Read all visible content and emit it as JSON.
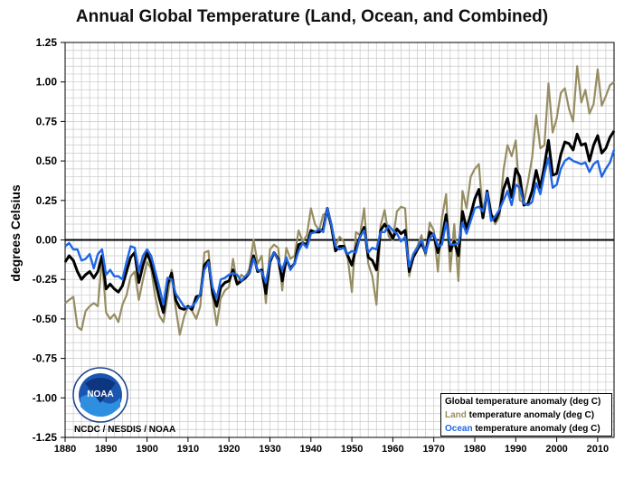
{
  "title": "Annual Global Temperature (Land, Ocean, and Combined)",
  "credit": "NCDC / NESDIS / NOAA",
  "logo_text": "NOAA",
  "colors": {
    "global": "#000000",
    "land": "#978d62",
    "ocean": "#1f66e5",
    "grid": "#c8c8c8"
  },
  "legend": [
    {
      "key": "Global",
      "rest": "temperature anomaly (deg C)",
      "color": "#000000"
    },
    {
      "key": "Land",
      "rest": "temperature anomaly (deg C)",
      "color": "#978d62"
    },
    {
      "key": "Ocean",
      "rest": "temperature anomaly (deg C)",
      "color": "#1f66e5"
    }
  ],
  "chart_data": {
    "type": "line",
    "title": "Annual Global Temperature (Land, Ocean, and Combined)",
    "xlabel": "",
    "ylabel": "degrees Celsius",
    "xlim": [
      1880,
      2014
    ],
    "ylim": [
      -1.25,
      1.25
    ],
    "yticks": [
      "1.25",
      "1.00",
      "0.75",
      "0.50",
      "0.25",
      "0.00",
      "-0.25",
      "-0.50",
      "-0.75",
      "-1.00",
      "-1.25"
    ],
    "xticks": [
      "1880",
      "1890",
      "1900",
      "1910",
      "1920",
      "1930",
      "1940",
      "1950",
      "1960",
      "1970",
      "1980",
      "1990",
      "2000",
      "2010"
    ],
    "x_start": 1880,
    "series": [
      {
        "name": "Global",
        "key": "global",
        "values": [
          -0.14,
          -0.1,
          -0.13,
          -0.2,
          -0.25,
          -0.22,
          -0.2,
          -0.24,
          -0.2,
          -0.1,
          -0.31,
          -0.28,
          -0.31,
          -0.33,
          -0.29,
          -0.2,
          -0.11,
          -0.08,
          -0.27,
          -0.16,
          -0.08,
          -0.15,
          -0.26,
          -0.37,
          -0.46,
          -0.28,
          -0.21,
          -0.38,
          -0.43,
          -0.44,
          -0.42,
          -0.44,
          -0.36,
          -0.35,
          -0.16,
          -0.13,
          -0.34,
          -0.42,
          -0.3,
          -0.27,
          -0.26,
          -0.19,
          -0.28,
          -0.26,
          -0.24,
          -0.21,
          -0.1,
          -0.2,
          -0.19,
          -0.34,
          -0.14,
          -0.08,
          -0.12,
          -0.26,
          -0.12,
          -0.18,
          -0.15,
          -0.03,
          -0.02,
          -0.03,
          0.06,
          0.05,
          0.05,
          0.07,
          0.2,
          0.09,
          -0.07,
          -0.04,
          -0.04,
          -0.1,
          -0.16,
          -0.05,
          0.02,
          0.08,
          -0.11,
          -0.13,
          -0.19,
          0.06,
          0.1,
          0.06,
          0.01,
          0.07,
          0.04,
          0.06,
          -0.2,
          -0.11,
          -0.06,
          -0.02,
          -0.08,
          0.05,
          0.03,
          -0.08,
          0.01,
          0.16,
          -0.07,
          -0.01,
          -0.1,
          0.18,
          0.07,
          0.16,
          0.26,
          0.32,
          0.14,
          0.31,
          0.16,
          0.12,
          0.18,
          0.32,
          0.39,
          0.27,
          0.45,
          0.4,
          0.22,
          0.23,
          0.31,
          0.44,
          0.33,
          0.47,
          0.63,
          0.41,
          0.42,
          0.54,
          0.62,
          0.61,
          0.57,
          0.67,
          0.6,
          0.61,
          0.5,
          0.6,
          0.66,
          0.55,
          0.58,
          0.65,
          0.69
        ]
      },
      {
        "name": "Land",
        "key": "land",
        "values": [
          -0.4,
          -0.38,
          -0.36,
          -0.55,
          -0.57,
          -0.45,
          -0.42,
          -0.4,
          -0.42,
          -0.12,
          -0.46,
          -0.5,
          -0.47,
          -0.52,
          -0.41,
          -0.35,
          -0.23,
          -0.2,
          -0.38,
          -0.25,
          -0.14,
          -0.18,
          -0.36,
          -0.48,
          -0.52,
          -0.36,
          -0.19,
          -0.43,
          -0.6,
          -0.49,
          -0.42,
          -0.45,
          -0.5,
          -0.42,
          -0.08,
          -0.07,
          -0.36,
          -0.54,
          -0.37,
          -0.32,
          -0.3,
          -0.12,
          -0.28,
          -0.22,
          -0.24,
          -0.18,
          0.0,
          -0.15,
          -0.1,
          -0.4,
          -0.06,
          -0.03,
          -0.05,
          -0.32,
          -0.05,
          -0.12,
          -0.1,
          0.06,
          -0.01,
          0.03,
          0.2,
          0.1,
          0.06,
          0.16,
          0.17,
          0.08,
          -0.04,
          0.02,
          -0.01,
          -0.12,
          -0.33,
          0.05,
          0.03,
          0.2,
          -0.15,
          -0.23,
          -0.41,
          0.09,
          0.19,
          0.02,
          0.0,
          0.18,
          0.21,
          0.2,
          -0.23,
          -0.09,
          -0.04,
          0.03,
          -0.1,
          0.11,
          0.06,
          -0.2,
          0.14,
          0.29,
          -0.2,
          0.1,
          -0.26,
          0.31,
          0.2,
          0.4,
          0.45,
          0.48,
          0.16,
          0.3,
          0.17,
          0.1,
          0.15,
          0.44,
          0.6,
          0.53,
          0.63,
          0.25,
          0.24,
          0.37,
          0.52,
          0.79,
          0.58,
          0.6,
          0.99,
          0.68,
          0.77,
          0.93,
          0.96,
          0.83,
          0.75,
          1.1,
          0.87,
          0.95,
          0.8,
          0.86,
          1.08,
          0.85,
          0.91,
          0.98,
          1.0
        ]
      },
      {
        "name": "Ocean",
        "key": "ocean",
        "values": [
          -0.04,
          -0.02,
          -0.06,
          -0.06,
          -0.13,
          -0.12,
          -0.09,
          -0.18,
          -0.09,
          -0.06,
          -0.22,
          -0.19,
          -0.23,
          -0.23,
          -0.25,
          -0.14,
          -0.04,
          -0.05,
          -0.2,
          -0.1,
          -0.06,
          -0.1,
          -0.2,
          -0.3,
          -0.41,
          -0.24,
          -0.25,
          -0.34,
          -0.38,
          -0.42,
          -0.43,
          -0.42,
          -0.39,
          -0.34,
          -0.19,
          -0.14,
          -0.3,
          -0.37,
          -0.25,
          -0.24,
          -0.22,
          -0.21,
          -0.22,
          -0.26,
          -0.23,
          -0.21,
          -0.12,
          -0.19,
          -0.2,
          -0.27,
          -0.13,
          -0.08,
          -0.13,
          -0.19,
          -0.11,
          -0.19,
          -0.15,
          -0.07,
          -0.02,
          -0.05,
          0.04,
          0.05,
          0.07,
          0.05,
          0.2,
          0.1,
          -0.04,
          -0.06,
          -0.05,
          -0.09,
          -0.07,
          -0.08,
          0.02,
          0.06,
          -0.08,
          -0.05,
          -0.06,
          0.05,
          0.05,
          0.09,
          0.06,
          0.04,
          -0.01,
          0.02,
          -0.17,
          -0.09,
          -0.05,
          0.0,
          -0.08,
          0.01,
          0.04,
          -0.04,
          -0.03,
          0.11,
          -0.03,
          -0.03,
          -0.02,
          0.11,
          0.04,
          0.12,
          0.2,
          0.21,
          0.18,
          0.3,
          0.12,
          0.15,
          0.19,
          0.25,
          0.31,
          0.22,
          0.35,
          0.33,
          0.23,
          0.22,
          0.24,
          0.36,
          0.29,
          0.42,
          0.52,
          0.33,
          0.35,
          0.45,
          0.5,
          0.52,
          0.5,
          0.49,
          0.48,
          0.49,
          0.43,
          0.48,
          0.5,
          0.4,
          0.45,
          0.49,
          0.57
        ]
      }
    ]
  }
}
